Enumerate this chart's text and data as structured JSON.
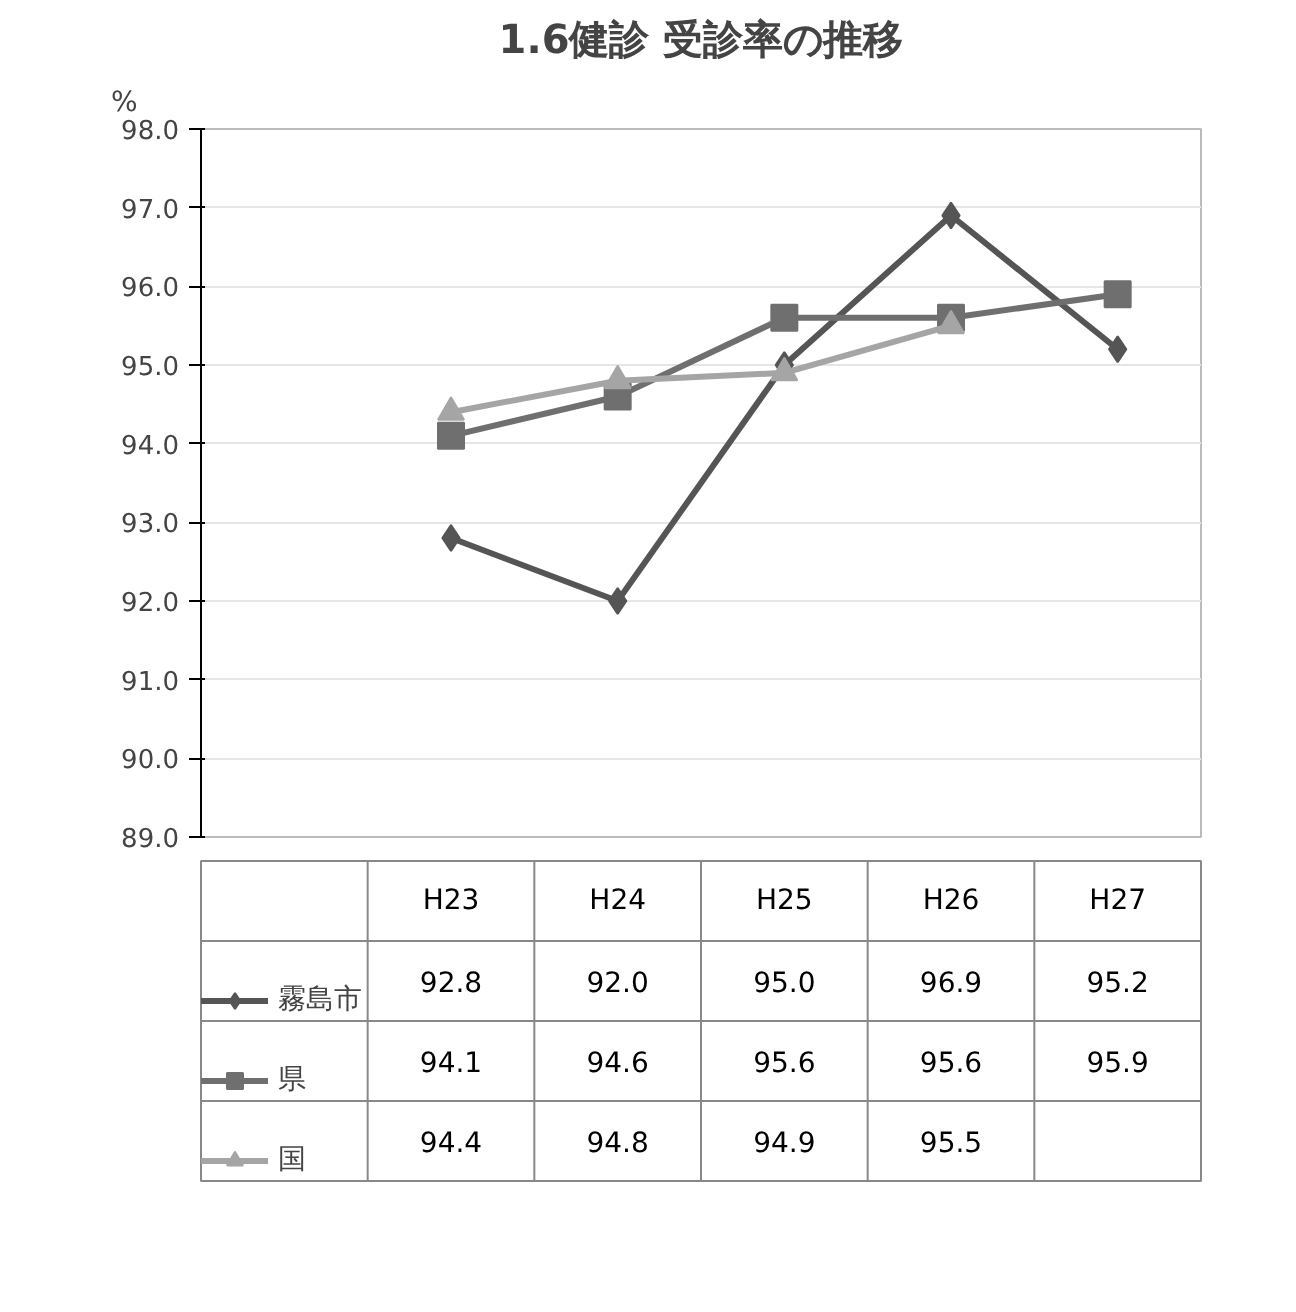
{
  "chart_data": {
    "type": "line",
    "title": "1.6健診 受診率の推移",
    "ylabel": "%",
    "categories": [
      "H23",
      "H24",
      "H25",
      "H26",
      "H27"
    ],
    "series": [
      {
        "name": "霧島市",
        "color": "#555555",
        "marker": "diamond",
        "values": [
          92.8,
          92.0,
          95.0,
          96.9,
          95.2
        ],
        "value_labels": [
          "92.8",
          "92.0",
          "95.0",
          "96.9",
          "95.2"
        ]
      },
      {
        "name": "県",
        "color": "#6f6f6f",
        "marker": "square",
        "values": [
          94.1,
          94.6,
          95.6,
          95.6,
          95.9
        ],
        "value_labels": [
          "94.1",
          "94.6",
          "95.6",
          "95.6",
          "95.9"
        ]
      },
      {
        "name": "国",
        "color": "#a5a5a5",
        "marker": "triangle",
        "values": [
          94.4,
          94.8,
          94.9,
          95.5,
          null
        ],
        "value_labels": [
          "94.4",
          "94.8",
          "94.9",
          "95.5",
          null
        ]
      }
    ],
    "ylim": [
      89.0,
      98.0
    ],
    "yticks": [
      {
        "value": 89,
        "label": "89.0"
      },
      {
        "value": 90,
        "label": "90.0"
      },
      {
        "value": 91,
        "label": "91.0"
      },
      {
        "value": 92,
        "label": "92.0"
      },
      {
        "value": 93,
        "label": "93.0"
      },
      {
        "value": 94,
        "label": "94.0"
      },
      {
        "value": 95,
        "label": "95.0"
      },
      {
        "value": 96,
        "label": "96.0"
      },
      {
        "value": 97,
        "label": "97.0"
      },
      {
        "value": 98,
        "label": "98.0"
      }
    ],
    "grid": "y",
    "legend": "bottom",
    "line_style": "solid"
  }
}
